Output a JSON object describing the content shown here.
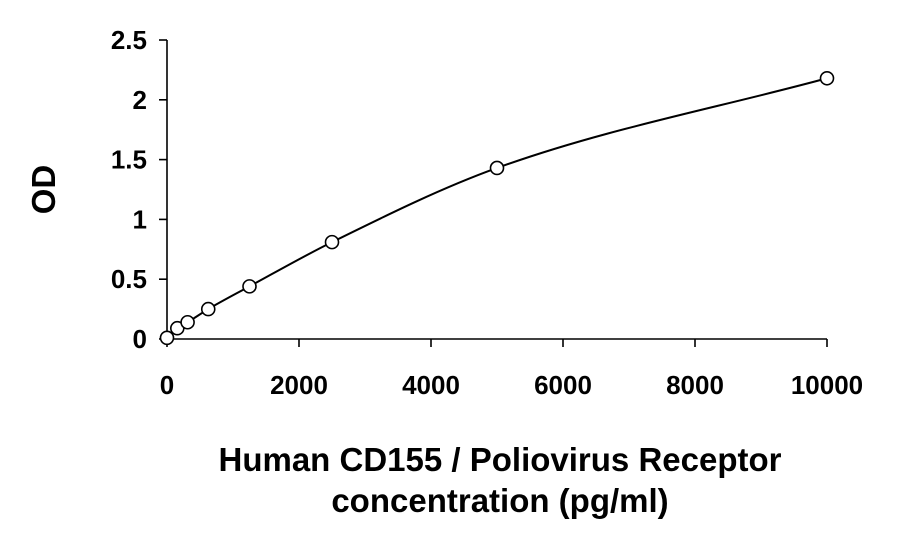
{
  "chart_data": {
    "type": "scatter",
    "title": "",
    "xlabel_lines": [
      "Human CD155 / Poliovirus Receptor",
      "concentration (pg/ml)"
    ],
    "ylabel": "OD",
    "xlim": [
      0,
      10000
    ],
    "ylim": [
      0,
      2.5
    ],
    "x_ticks": [
      0,
      2000,
      4000,
      6000,
      8000,
      10000
    ],
    "x_tick_labels": [
      "0",
      "2000",
      "4000",
      "6000",
      "8000",
      "10000"
    ],
    "y_ticks": [
      0,
      0.5,
      1,
      1.5,
      2,
      2.5
    ],
    "y_tick_labels": [
      "0",
      "0.5",
      "1",
      "1.5",
      "2",
      "2.5"
    ],
    "grid": false,
    "legend": "none",
    "series": [
      {
        "marker": "open-circle",
        "fit": "smooth-curve",
        "x": [
          0,
          156,
          312,
          625,
          1250,
          2500,
          5000,
          10000
        ],
        "y": [
          0.01,
          0.09,
          0.14,
          0.25,
          0.44,
          0.81,
          1.43,
          2.18
        ]
      }
    ]
  }
}
